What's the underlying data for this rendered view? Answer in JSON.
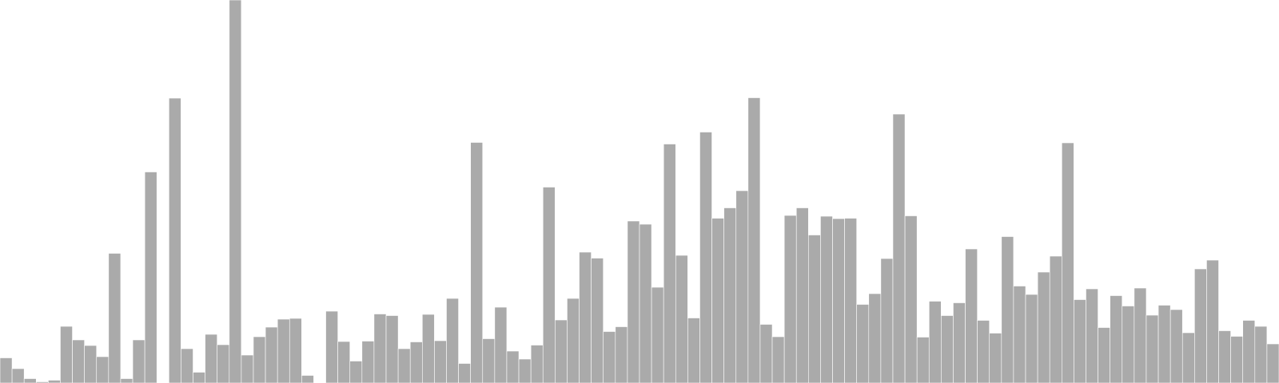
{
  "chart_data": {
    "type": "bar",
    "bar_color": "#aaaaaa",
    "bar_edge_color": "#ffffff",
    "grid": false,
    "ylim": [
      0,
      480
    ],
    "values": [
      31.5,
      18,
      5.5,
      1.5,
      3.5,
      71,
      54,
      47,
      33,
      162.5,
      5.5,
      54,
      264.5,
      0,
      357,
      43,
      13.5,
      61,
      48,
      480,
      35,
      58,
      70,
      80,
      81,
      9.5,
      0,
      90,
      52,
      27.5,
      52.5,
      86.5,
      84.5,
      43,
      51.5,
      86,
      53,
      106,
      24.5,
      301.5,
      55.5,
      95,
      40,
      30,
      47.5,
      245.5,
      79,
      106,
      164,
      156.5,
      64.5,
      70.5,
      203,
      199,
      120,
      299.5,
      160,
      81.5,
      314.5,
      206.5,
      219.5,
      241,
      357.5,
      73.5,
      58,
      210,
      219.5,
      185.5,
      209,
      206,
      206.5,
      98.5,
      112,
      156,
      337,
      209.5,
      57.5,
      102.5,
      84.5,
      100.5,
      168,
      78.5,
      62.5,
      183.5,
      121.5,
      111,
      139,
      159,
      301,
      104.5,
      118,
      69.5,
      109.5,
      96.5,
      119,
      85,
      97.5,
      92,
      63,
      143,
      154,
      65.5,
      58.5,
      78.5,
      71,
      49
    ]
  }
}
